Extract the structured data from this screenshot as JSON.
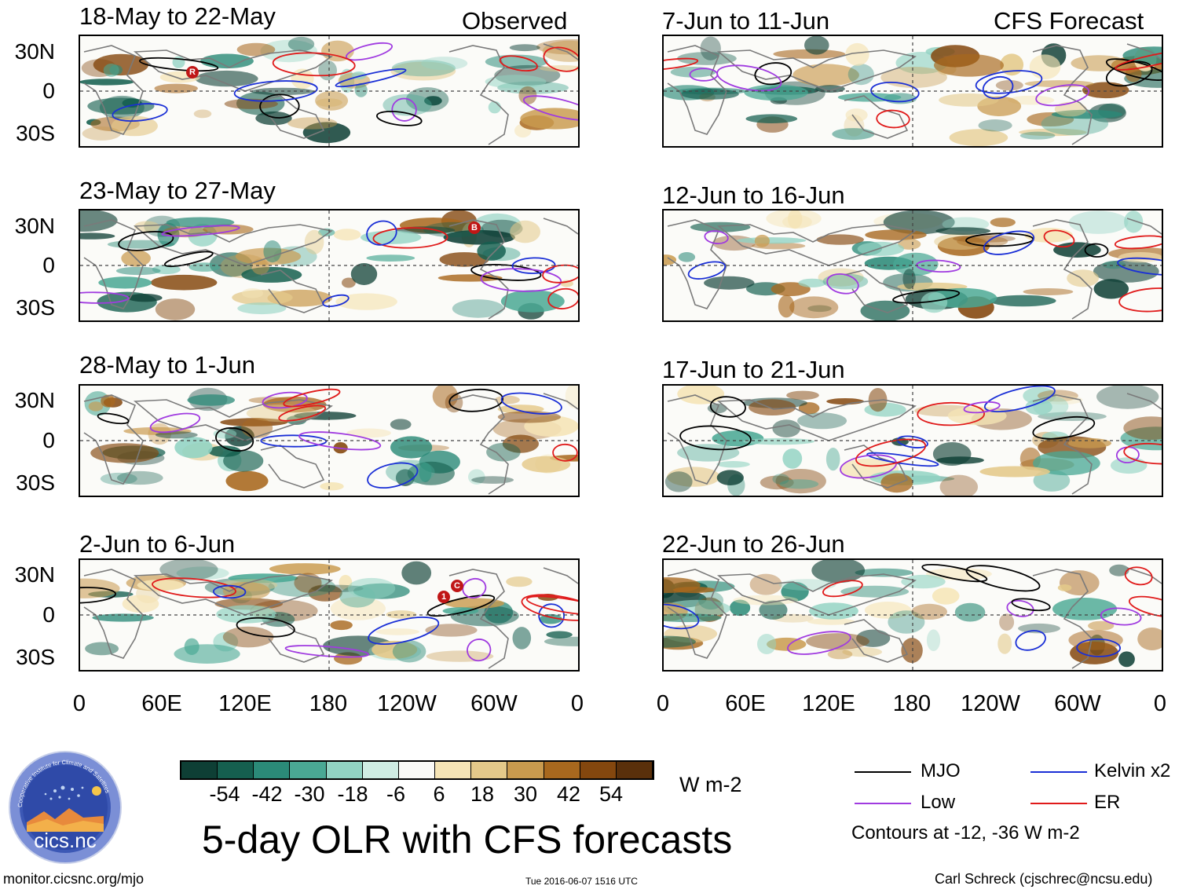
{
  "header": {
    "observed_label": "Observed",
    "forecast_label": "CFS Forecast"
  },
  "observed_panels": [
    {
      "title": "18-May to 22-May"
    },
    {
      "title": "23-May to 27-May"
    },
    {
      "title": "28-May to 1-Jun"
    },
    {
      "title": "2-Jun to 6-Jun"
    }
  ],
  "forecast_panels": [
    {
      "title": "7-Jun to 11-Jun"
    },
    {
      "title": "12-Jun to 16-Jun"
    },
    {
      "title": "17-Jun to 21-Jun"
    },
    {
      "title": "22-Jun to 26-Jun"
    }
  ],
  "axes": {
    "lat_labels": [
      "30N",
      "0",
      "30S"
    ],
    "lon_labels": [
      "0",
      "60E",
      "120E",
      "180",
      "120W",
      "60W",
      "0"
    ]
  },
  "markers": {
    "panel1": "R",
    "panel2": "B",
    "panel4_a": "C",
    "panel4_b": "1"
  },
  "colorbar": {
    "ticks": [
      "-54",
      "-42",
      "-30",
      "-18",
      "-6",
      "6",
      "18",
      "30",
      "42",
      "54"
    ],
    "colors": [
      "#0e3f35",
      "#155f4f",
      "#2b8a78",
      "#4aa894",
      "#92d3c3",
      "#cfece3",
      "#fafaf7",
      "#f5e4b5",
      "#e4c98a",
      "#c99a4e",
      "#a8681e",
      "#84470e",
      "#5a300b"
    ],
    "unit": "W m-2"
  },
  "legend": {
    "mjo": {
      "label": "MJO",
      "color": "#000000"
    },
    "kelvin": {
      "label": "Kelvin x2",
      "color": "#1a2fd6"
    },
    "low": {
      "label": "Low",
      "color": "#a03be0"
    },
    "er": {
      "label": "ER",
      "color": "#e01a1a"
    },
    "contours_note": "Contours at -12, -36 W m-2"
  },
  "main_title": "5-day OLR with CFS forecasts",
  "logo": {
    "text": "cics.nc",
    "ring_text": "Cooperative Institute for Climate and Satellites"
  },
  "footer": {
    "url": "monitor.cicsnc.org/mjo",
    "timestamp": "Tue 2016-06-07 1516 UTC",
    "credit": "Carl Schreck (cjschrec@ncsu.edu)"
  }
}
